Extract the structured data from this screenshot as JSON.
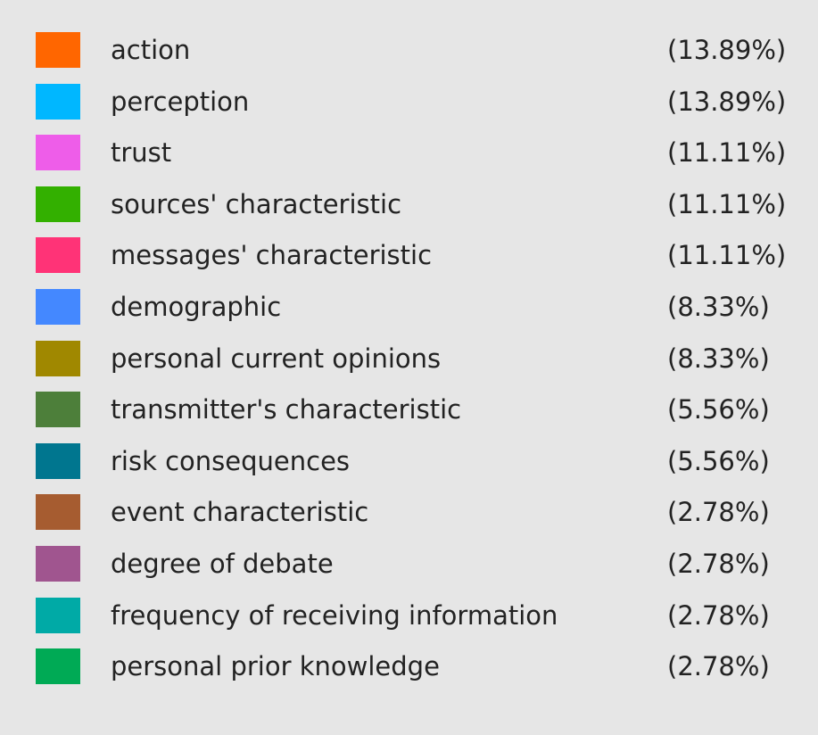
{
  "legend": {
    "items": [
      {
        "label": "action",
        "share": "(13.89%)",
        "color": "#ff6600"
      },
      {
        "label": "perception",
        "share": "(13.89%)",
        "color": "#00b7ff"
      },
      {
        "label": "trust",
        "share": "(11.11%)",
        "color": "#ee5de9"
      },
      {
        "label": "sources' characteristic",
        "share": "(11.11%)",
        "color": "#33b000"
      },
      {
        "label": "messages' characteristic",
        "share": "(11.11%)",
        "color": "#ff3377"
      },
      {
        "label": "demographic",
        "share": "(8.33%)",
        "color": "#4488ff"
      },
      {
        "label": "personal current opinions",
        "share": "(8.33%)",
        "color": "#a08800"
      },
      {
        "label": "transmitter's characteristic",
        "share": "(5.56%)",
        "color": "#4d7f3a"
      },
      {
        "label": "risk consequences",
        "share": "(5.56%)",
        "color": "#00768f"
      },
      {
        "label": "event characteristic",
        "share": "(2.78%)",
        "color": "#a65c30"
      },
      {
        "label": "degree of debate",
        "share": "(2.78%)",
        "color": "#a0558f"
      },
      {
        "label": "frequency of receiving information",
        "share": "(2.78%)",
        "color": "#00aaa6"
      },
      {
        "label": "personal prior knowledge",
        "share": "(2.78%)",
        "color": "#00aa55"
      }
    ]
  }
}
